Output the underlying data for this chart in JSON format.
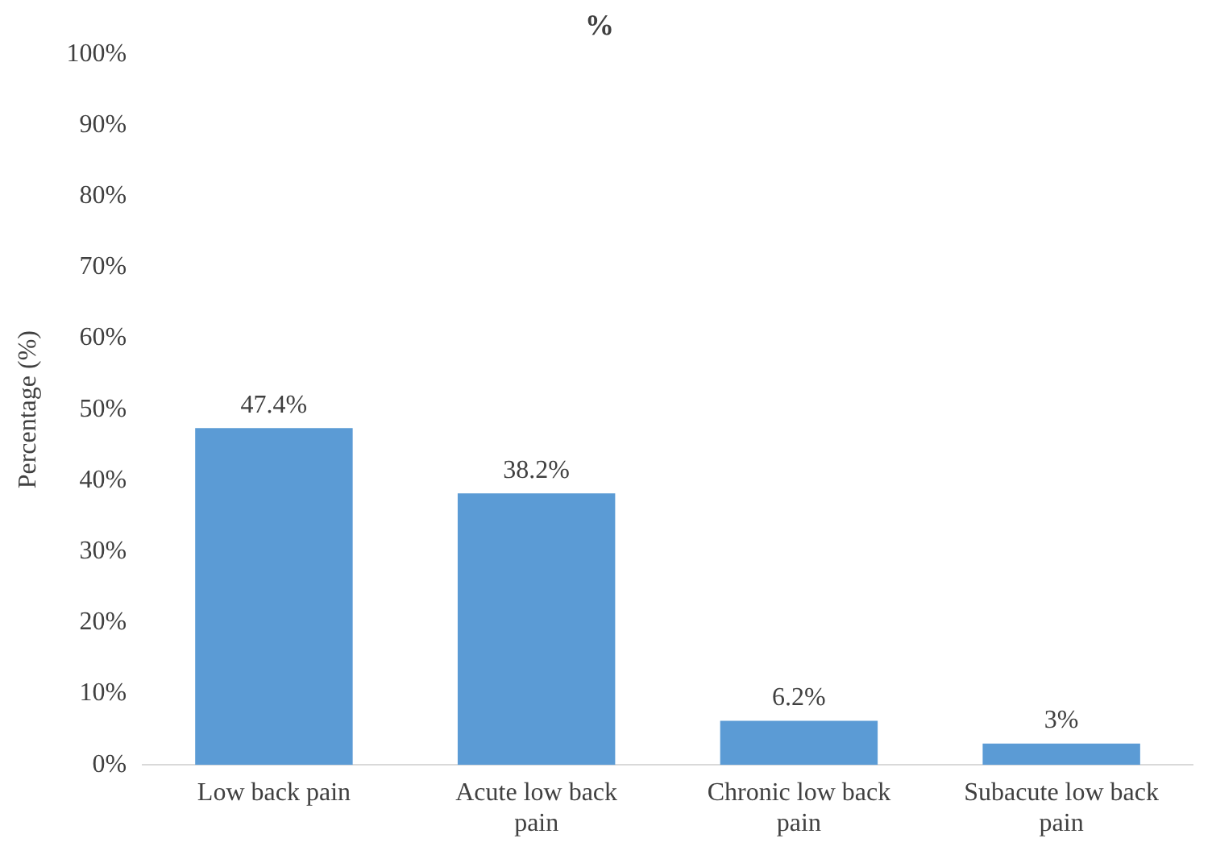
{
  "chart_data": {
    "type": "bar",
    "title": "%",
    "ylabel": "Percentage (%)",
    "categories": [
      "Low back pain",
      "Acute low back pain",
      "Chronic low back pain",
      "Subacute low back pain"
    ],
    "values": [
      47.4,
      38.2,
      6.2,
      3
    ],
    "value_labels": [
      "47.4%",
      "38.2%",
      "6.2%",
      "3%"
    ],
    "color": "#5b9bd5",
    "ylim": [
      0,
      100
    ],
    "yticks": [
      {
        "value": 0,
        "label": "0%"
      },
      {
        "value": 10,
        "label": "10%"
      },
      {
        "value": 20,
        "label": "20%"
      },
      {
        "value": 30,
        "label": "30%"
      },
      {
        "value": 40,
        "label": "40%"
      },
      {
        "value": 50,
        "label": "50%"
      },
      {
        "value": 60,
        "label": "60%"
      },
      {
        "value": 70,
        "label": "70%"
      },
      {
        "value": 80,
        "label": "80%"
      },
      {
        "value": 90,
        "label": "90%"
      },
      {
        "value": 100,
        "label": "100%"
      }
    ],
    "grid": false,
    "legend": false
  }
}
